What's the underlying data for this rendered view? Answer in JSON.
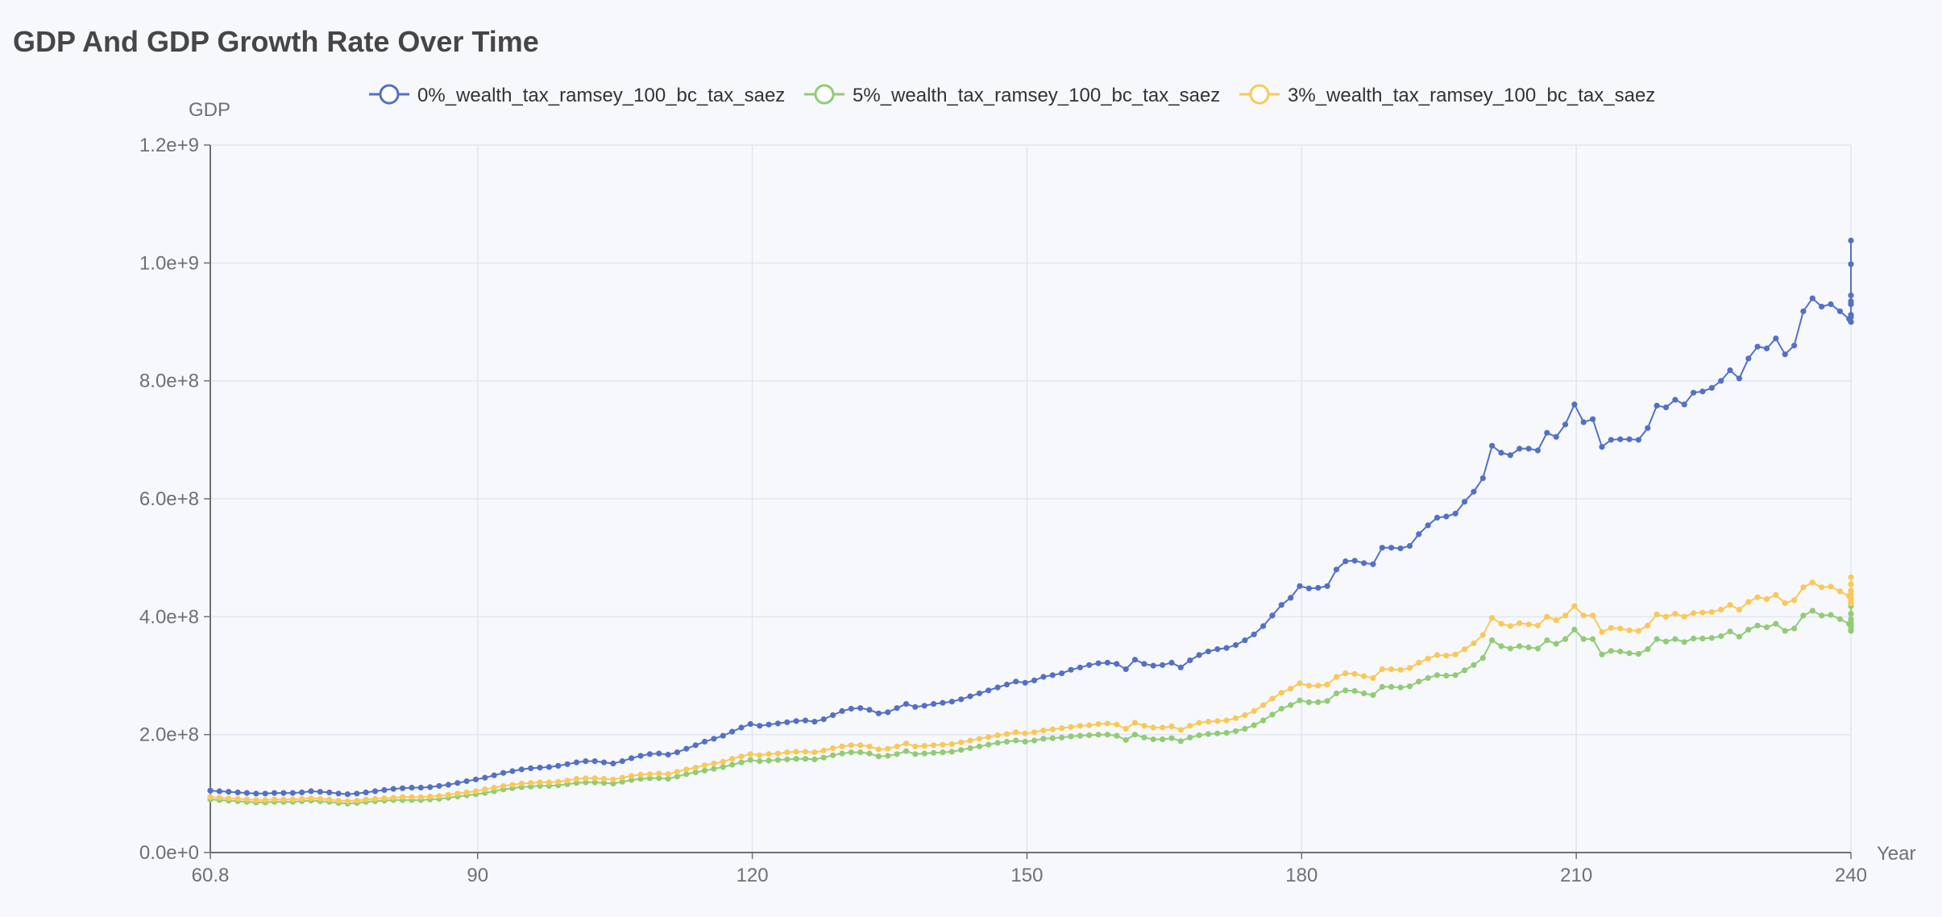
{
  "chart_data": {
    "type": "line",
    "title": "GDP And GDP Growth Rate Over Time",
    "xlabel": "Year",
    "ylabel": "GDP",
    "xlim": [
      60.8,
      240
    ],
    "ylim": [
      0,
      1200000000
    ],
    "x_ticks": [
      "60.8",
      "90",
      "120",
      "150",
      "180",
      "210",
      "240"
    ],
    "y_ticks": [
      "0.0e+0",
      "2.0e+8",
      "4.0e+8",
      "6.0e+8",
      "8.0e+8",
      "1.0e+9",
      "1.2e+9"
    ],
    "grid": true,
    "legend_position": "top-center",
    "x_start": 60.8,
    "x_step": 1,
    "series": [
      {
        "name": "0%_wealth_tax_ramsey_100_bc_tax_saez",
        "color": "#5470c6",
        "values": [
          105000000,
          104000000,
          103000000,
          102000000,
          101000000,
          100000000,
          100000000,
          101000000,
          101000000,
          101000000,
          102000000,
          104000000,
          103000000,
          102000000,
          100000000,
          99000000,
          100000000,
          102000000,
          104000000,
          106000000,
          108000000,
          109000000,
          110000000,
          110000000,
          111000000,
          113000000,
          115000000,
          118000000,
          121000000,
          124000000,
          127000000,
          131000000,
          135000000,
          138000000,
          141000000,
          143000000,
          144000000,
          145000000,
          147000000,
          150000000,
          153000000,
          155000000,
          155000000,
          153000000,
          151000000,
          155000000,
          160000000,
          164000000,
          167000000,
          168000000,
          166000000,
          170000000,
          176000000,
          182000000,
          188000000,
          193000000,
          198000000,
          205000000,
          212000000,
          218000000,
          215000000,
          217000000,
          219000000,
          221000000,
          223000000,
          224000000,
          222000000,
          226000000,
          233000000,
          240000000,
          244000000,
          245000000,
          242000000,
          236000000,
          238000000,
          245000000,
          252000000,
          247000000,
          249000000,
          252000000,
          254000000,
          256000000,
          260000000,
          265000000,
          270000000,
          275000000,
          280000000,
          285000000,
          290000000,
          288000000,
          292000000,
          298000000,
          301000000,
          304000000,
          310000000,
          314000000,
          318000000,
          321000000,
          322000000,
          320000000,
          311000000,
          327000000,
          320000000,
          317000000,
          318000000,
          322000000,
          314000000,
          326000000,
          335000000,
          341000000,
          345000000,
          347000000,
          352000000,
          360000000,
          370000000,
          384000000,
          402000000,
          420000000,
          432000000,
          452000000,
          448000000,
          449000000,
          452000000,
          480000000,
          494000000,
          495000000,
          491000000,
          489000000,
          517000000,
          517000000,
          516000000,
          520000000,
          540000000,
          555000000,
          568000000,
          570000000,
          575000000,
          595000000,
          612000000,
          635000000,
          690000000,
          678000000,
          674000000,
          685000000,
          685000000,
          682000000,
          712000000,
          705000000,
          726000000,
          760000000,
          730000000,
          735000000,
          688000000,
          700000000,
          701000000,
          701000000,
          700000000,
          720000000,
          758000000,
          755000000,
          768000000,
          760000000,
          780000000,
          782000000,
          788000000,
          800000000,
          818000000,
          804000000,
          838000000,
          858000000,
          855000000,
          872000000,
          845000000,
          860000000,
          918000000,
          940000000,
          926000000,
          930000000,
          918000000,
          905000000,
          900000000,
          935000000,
          900000000,
          912000000,
          930000000,
          908000000,
          930000000,
          945000000,
          998000000,
          1038000000
        ]
      },
      {
        "name": "5%_wealth_tax_ramsey_100_bc_tax_saez",
        "color": "#91cc75",
        "values": [
          90000000,
          89000000,
          88000000,
          87000000,
          86000000,
          85000000,
          85000000,
          86000000,
          86000000,
          86000000,
          87000000,
          88000000,
          87000000,
          86000000,
          84000000,
          83000000,
          84000000,
          86000000,
          87000000,
          88000000,
          89000000,
          89000000,
          89000000,
          89000000,
          90000000,
          91000000,
          93000000,
          95000000,
          97000000,
          99000000,
          101000000,
          104000000,
          107000000,
          109000000,
          111000000,
          112000000,
          113000000,
          113000000,
          114000000,
          116000000,
          118000000,
          119000000,
          119000000,
          118000000,
          117000000,
          120000000,
          123000000,
          125000000,
          126000000,
          126000000,
          125000000,
          129000000,
          133000000,
          136000000,
          139000000,
          142000000,
          145000000,
          149000000,
          153000000,
          157000000,
          155000000,
          156000000,
          157000000,
          158000000,
          159000000,
          159000000,
          158000000,
          161000000,
          165000000,
          168000000,
          170000000,
          170000000,
          168000000,
          163000000,
          164000000,
          167000000,
          172000000,
          167000000,
          168000000,
          169000000,
          170000000,
          171000000,
          174000000,
          177000000,
          180000000,
          183000000,
          186000000,
          188000000,
          190000000,
          188000000,
          190000000,
          193000000,
          194000000,
          195000000,
          197000000,
          198000000,
          199000000,
          200000000,
          200000000,
          198000000,
          191000000,
          200000000,
          195000000,
          192000000,
          192000000,
          194000000,
          189000000,
          195000000,
          199000000,
          201000000,
          202000000,
          203000000,
          206000000,
          210000000,
          216000000,
          224000000,
          234000000,
          244000000,
          250000000,
          258000000,
          255000000,
          255000000,
          257000000,
          270000000,
          275000000,
          274000000,
          270000000,
          267000000,
          281000000,
          281000000,
          280000000,
          282000000,
          290000000,
          296000000,
          301000000,
          300000000,
          301000000,
          309000000,
          318000000,
          330000000,
          360000000,
          350000000,
          346000000,
          350000000,
          348000000,
          346000000,
          360000000,
          354000000,
          362000000,
          378000000,
          362000000,
          362000000,
          336000000,
          342000000,
          341000000,
          338000000,
          337000000,
          345000000,
          362000000,
          358000000,
          362000000,
          357000000,
          363000000,
          363000000,
          364000000,
          367000000,
          375000000,
          366000000,
          378000000,
          385000000,
          382000000,
          388000000,
          376000000,
          380000000,
          402000000,
          410000000,
          402000000,
          403000000,
          396000000,
          388000000,
          383000000,
          396000000,
          378000000,
          383000000,
          390000000,
          376000000,
          385000000,
          389000000,
          405000000,
          418000000
        ]
      },
      {
        "name": "3%_wealth_tax_ramsey_100_bc_tax_saez",
        "color": "#fac858",
        "values": [
          94000000,
          93000000,
          92000000,
          91000000,
          90000000,
          89000000,
          89000000,
          90000000,
          90000000,
          90000000,
          91000000,
          92000000,
          91000000,
          90000000,
          88000000,
          87000000,
          88000000,
          90000000,
          91000000,
          92000000,
          93000000,
          94000000,
          94000000,
          94000000,
          95000000,
          96000000,
          98000000,
          100000000,
          102000000,
          104000000,
          107000000,
          110000000,
          113000000,
          115000000,
          117000000,
          118000000,
          119000000,
          119000000,
          120000000,
          122000000,
          125000000,
          126000000,
          126000000,
          125000000,
          124000000,
          127000000,
          130000000,
          132000000,
          133000000,
          134000000,
          133000000,
          137000000,
          141000000,
          144000000,
          148000000,
          151000000,
          154000000,
          159000000,
          163000000,
          167000000,
          165000000,
          167000000,
          168000000,
          170000000,
          171000000,
          171000000,
          170000000,
          173000000,
          177000000,
          180000000,
          182000000,
          182000000,
          180000000,
          175000000,
          176000000,
          180000000,
          185000000,
          180000000,
          181000000,
          182000000,
          183000000,
          184000000,
          187000000,
          190000000,
          193000000,
          196000000,
          199000000,
          201000000,
          204000000,
          202000000,
          204000000,
          207000000,
          209000000,
          211000000,
          213000000,
          215000000,
          216000000,
          218000000,
          219000000,
          217000000,
          210000000,
          220000000,
          215000000,
          212000000,
          212000000,
          214000000,
          208000000,
          215000000,
          220000000,
          222000000,
          223000000,
          224000000,
          228000000,
          233000000,
          240000000,
          250000000,
          261000000,
          271000000,
          278000000,
          287000000,
          283000000,
          283000000,
          285000000,
          298000000,
          304000000,
          303000000,
          299000000,
          296000000,
          311000000,
          311000000,
          310000000,
          313000000,
          322000000,
          329000000,
          335000000,
          334000000,
          336000000,
          345000000,
          355000000,
          369000000,
          398000000,
          388000000,
          384000000,
          389000000,
          387000000,
          385000000,
          400000000,
          394000000,
          402000000,
          418000000,
          402000000,
          402000000,
          374000000,
          381000000,
          380000000,
          377000000,
          376000000,
          385000000,
          404000000,
          400000000,
          405000000,
          400000000,
          406000000,
          407000000,
          408000000,
          412000000,
          420000000,
          412000000,
          425000000,
          433000000,
          430000000,
          437000000,
          423000000,
          428000000,
          450000000,
          458000000,
          450000000,
          451000000,
          443000000,
          435000000,
          430000000,
          444000000,
          425000000,
          430000000,
          438000000,
          422000000,
          432000000,
          437000000,
          455000000,
          467000000
        ]
      }
    ]
  }
}
